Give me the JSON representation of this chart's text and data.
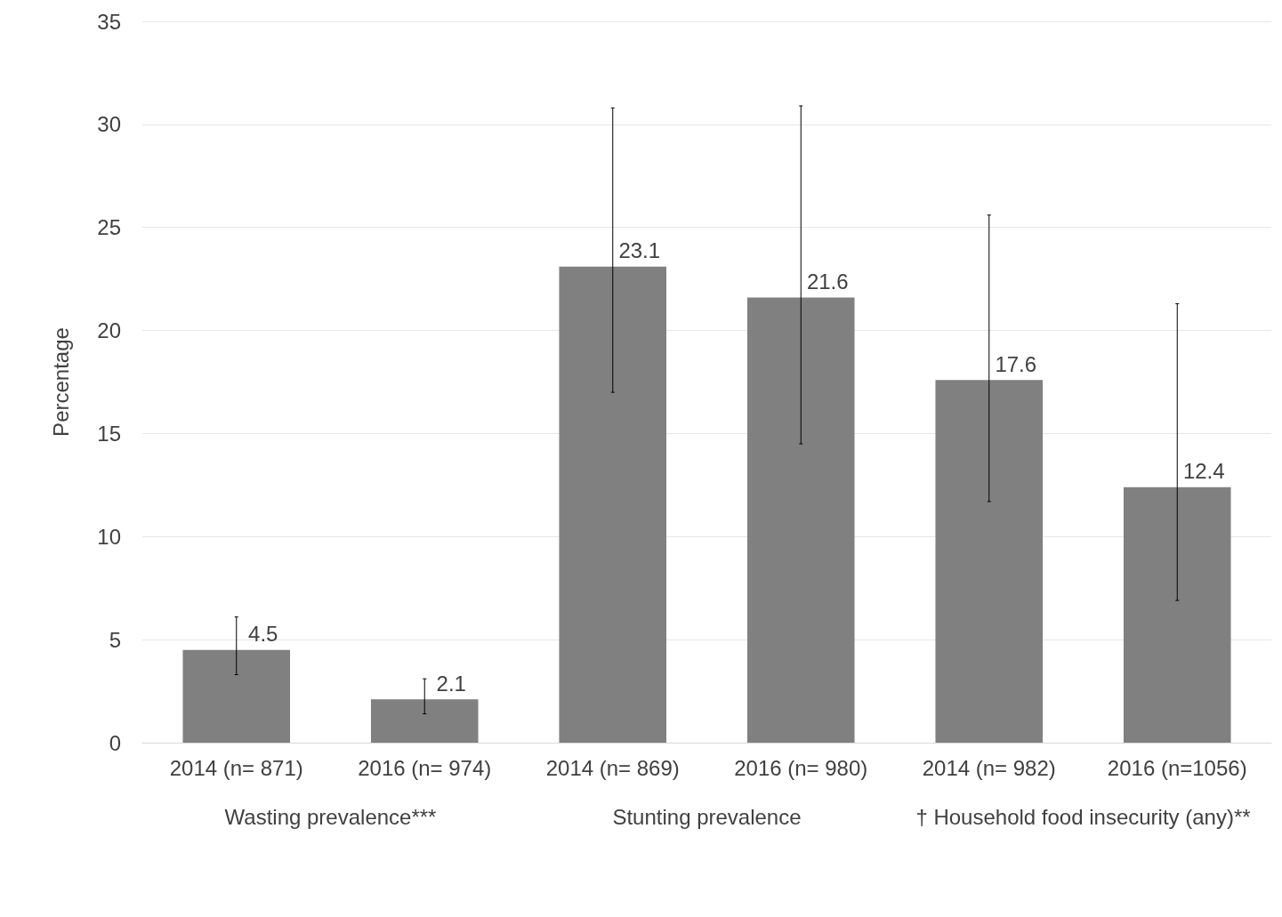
{
  "chart_data": {
    "type": "bar",
    "ylabel": "Percentage",
    "categories": [
      "2014 (n= 871)",
      "2016 (n= 974)",
      "2014 (n= 869)",
      "2016 (n= 980)",
      "2014 (n= 982)",
      "2016 (n=1056)"
    ],
    "values": [
      4.5,
      2.1,
      23.1,
      21.6,
      17.6,
      12.4
    ],
    "errors": [
      [
        3.3,
        6.1
      ],
      [
        1.4,
        3.1
      ],
      [
        17.0,
        30.8
      ],
      [
        14.5,
        30.9
      ],
      [
        11.7,
        25.6
      ],
      [
        6.9,
        21.3
      ]
    ],
    "color": "#808080",
    "ylim": [
      0,
      35
    ],
    "yticks": [
      0,
      5,
      10,
      15,
      20,
      25,
      30,
      35
    ],
    "grid": "y",
    "data_labels": true,
    "annotations": [
      "Wasting prevalence***",
      "Stunting prevalence",
      "† Household food insecurity (any)**"
    ]
  }
}
